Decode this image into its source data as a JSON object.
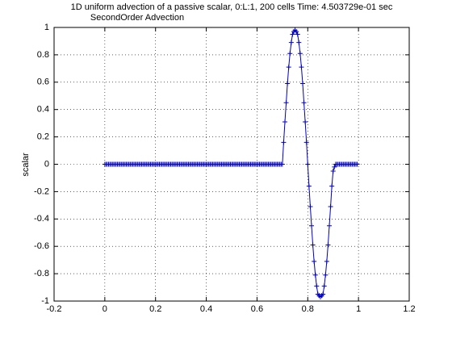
{
  "chart_data": {
    "type": "line",
    "title": "1D uniform advection of a passive scalar, 0:L:1, 200 cells Time: 4.503729e-01 sec",
    "subtitle": "SecondOrder Advection",
    "y_label": "scalar",
    "color": "#0000c0",
    "grid": true,
    "xlim": [
      -0.2,
      1.2
    ],
    "xticks": [
      -0.2,
      0,
      0.2,
      0.4,
      0.6,
      0.8,
      1,
      1.2
    ],
    "ylim": [
      -1,
      1
    ],
    "yticks": [
      -1,
      -0.8,
      -0.6,
      -0.4,
      -0.2,
      0,
      0.2,
      0.4,
      0.6,
      0.8,
      1
    ],
    "x": [
      0,
      0.005,
      0.01,
      0.015,
      0.02,
      0.025,
      0.03,
      0.035,
      0.04,
      0.045,
      0.05,
      0.055,
      0.06,
      0.065,
      0.07,
      0.075,
      0.08,
      0.085,
      0.09,
      0.095,
      0.1,
      0.105,
      0.11,
      0.115,
      0.12,
      0.125,
      0.13,
      0.135,
      0.14,
      0.145,
      0.15,
      0.155,
      0.16,
      0.165,
      0.17,
      0.175,
      0.18,
      0.185,
      0.19,
      0.195,
      0.2,
      0.205,
      0.21,
      0.215,
      0.22,
      0.225,
      0.23,
      0.235,
      0.24,
      0.245,
      0.25,
      0.255,
      0.26,
      0.265,
      0.27,
      0.275,
      0.28,
      0.285,
      0.29,
      0.295,
      0.3,
      0.305,
      0.31,
      0.315,
      0.32,
      0.325,
      0.33,
      0.335,
      0.34,
      0.345,
      0.35,
      0.355,
      0.36,
      0.365,
      0.37,
      0.375,
      0.38,
      0.385,
      0.39,
      0.395,
      0.4,
      0.405,
      0.41,
      0.415,
      0.42,
      0.425,
      0.43,
      0.435,
      0.44,
      0.445,
      0.45,
      0.455,
      0.46,
      0.465,
      0.47,
      0.475,
      0.48,
      0.485,
      0.49,
      0.495,
      0.5,
      0.505,
      0.51,
      0.515,
      0.52,
      0.525,
      0.53,
      0.535,
      0.54,
      0.545,
      0.55,
      0.555,
      0.56,
      0.565,
      0.57,
      0.575,
      0.58,
      0.585,
      0.59,
      0.595,
      0.6,
      0.605,
      0.61,
      0.615,
      0.62,
      0.625,
      0.63,
      0.635,
      0.64,
      0.645,
      0.65,
      0.655,
      0.66,
      0.665,
      0.67,
      0.675,
      0.68,
      0.685,
      0.69,
      0.695,
      0.7,
      0.705,
      0.71,
      0.715,
      0.72,
      0.725,
      0.73,
      0.735,
      0.74,
      0.745,
      0.75,
      0.755,
      0.76,
      0.765,
      0.77,
      0.775,
      0.78,
      0.785,
      0.79,
      0.795,
      0.8,
      0.805,
      0.81,
      0.815,
      0.82,
      0.825,
      0.83,
      0.835,
      0.84,
      0.845,
      0.85,
      0.855,
      0.86,
      0.865,
      0.87,
      0.875,
      0.88,
      0.885,
      0.89,
      0.895,
      0.9,
      0.905,
      0.91,
      0.915,
      0.92,
      0.925,
      0.93,
      0.935,
      0.94,
      0.945,
      0.95,
      0.955,
      0.96,
      0.965,
      0.97,
      0.975,
      0.98,
      0.985,
      0.99,
      0.995
    ],
    "values": [
      0,
      0,
      0,
      0,
      0,
      0,
      0,
      0,
      0,
      0,
      0,
      0,
      0,
      0,
      0,
      0,
      0,
      0,
      0,
      0,
      0,
      0,
      0,
      0,
      0,
      0,
      0,
      0,
      0,
      0,
      0,
      0,
      0,
      0,
      0,
      0,
      0,
      0,
      0,
      0,
      0,
      0,
      0,
      0,
      0,
      0,
      0,
      0,
      0,
      0,
      0,
      0,
      0,
      0,
      0,
      0,
      0,
      0,
      0,
      0,
      0,
      0,
      0,
      0,
      0,
      0,
      0,
      0,
      0,
      0,
      0,
      0,
      0,
      0,
      0,
      0,
      0,
      0,
      0,
      0,
      0,
      0,
      0,
      0,
      0,
      0,
      0,
      0,
      0,
      0,
      0,
      0,
      0,
      0,
      0,
      0,
      0,
      0,
      0,
      0,
      0,
      0,
      0,
      0,
      0,
      0,
      0,
      0,
      0,
      0,
      0,
      0,
      0,
      0,
      0,
      0,
      0,
      0,
      0,
      0,
      0,
      0,
      0,
      0,
      0,
      0,
      0,
      0,
      0,
      0,
      0,
      0,
      0,
      0,
      0,
      0,
      0,
      0,
      0,
      0,
      0,
      0.16,
      0.31,
      0.45,
      0.59,
      0.71,
      0.81,
      0.89,
      0.95,
      0.97,
      0.98,
      0.97,
      0.95,
      0.89,
      0.81,
      0.71,
      0.59,
      0.45,
      0.31,
      0.16,
      0,
      -0.16,
      -0.31,
      -0.45,
      -0.59,
      -0.71,
      -0.81,
      -0.89,
      -0.95,
      -0.96,
      -0.97,
      -0.96,
      -0.95,
      -0.89,
      -0.81,
      -0.71,
      -0.59,
      -0.45,
      -0.31,
      -0.16,
      -0.05,
      -0.02,
      0,
      0,
      0,
      0,
      0,
      0,
      0,
      0,
      0,
      0,
      0,
      0,
      0,
      0,
      0,
      0,
      0,
      0
    ]
  }
}
